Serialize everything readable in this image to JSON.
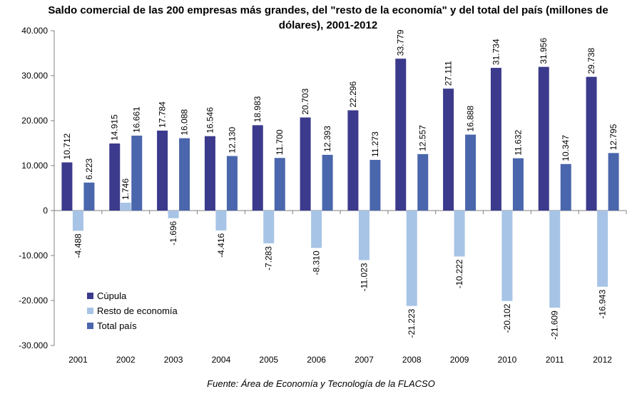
{
  "chart_data": {
    "type": "bar",
    "title": "Saldo comercial de las 200 empresas más grandes, del \"resto de la economía\" y del total del país (millones de dólares), 2001-2012",
    "source": "Fuente: Área de Economía y Tecnología de la FLACSO",
    "categories": [
      "2001",
      "2002",
      "2003",
      "2004",
      "2005",
      "2006",
      "2007",
      "2008",
      "2009",
      "2010",
      "2011",
      "2012"
    ],
    "series": [
      {
        "name": "Cúpula",
        "color": "#3b3a8c",
        "values": [
          10712,
          14915,
          17784,
          16546,
          18983,
          20703,
          22296,
          33779,
          27111,
          31734,
          31956,
          29738
        ],
        "labels": [
          "10.712",
          "14.915",
          "17.784",
          "16.546",
          "18.983",
          "20.703",
          "22.296",
          "33.779",
          "27.111",
          "31.734",
          "31.956",
          "29.738"
        ]
      },
      {
        "name": "Resto de economía",
        "color": "#a7c4e6",
        "values": [
          -4488,
          1746,
          -1696,
          -4416,
          -7283,
          -8310,
          -11023,
          -21223,
          -10222,
          -20102,
          -21609,
          -16943
        ],
        "labels": [
          "-4.488",
          "1.746",
          "-1.696",
          "-4.416",
          "-7.283",
          "-8.310",
          "-11.023",
          "-21.223",
          "-10.222",
          "-20.102",
          "-21.609",
          "-16.943"
        ]
      },
      {
        "name": "Total país",
        "color": "#4a66ac",
        "values": [
          6223,
          16661,
          16088,
          12130,
          11700,
          12393,
          11273,
          12557,
          16888,
          11632,
          10347,
          12795
        ],
        "labels": [
          "6.223",
          "16.661",
          "16.088",
          "12.130",
          "11.700",
          "12.393",
          "11.273",
          "12.557",
          "16.888",
          "11.632",
          "10.347",
          "12.795"
        ]
      }
    ],
    "ylim": [
      -30000,
      40000
    ],
    "yticks": [
      40000,
      30000,
      20000,
      10000,
      0,
      -10000,
      -20000,
      -30000
    ],
    "ytick_labels": [
      "40.000",
      "30.000",
      "20.000",
      "10.000",
      "0",
      "-10.000",
      "-20.000",
      "-30.000"
    ],
    "xlabel": "",
    "ylabel": "",
    "grid": false,
    "legend_position": "bottom-left"
  }
}
